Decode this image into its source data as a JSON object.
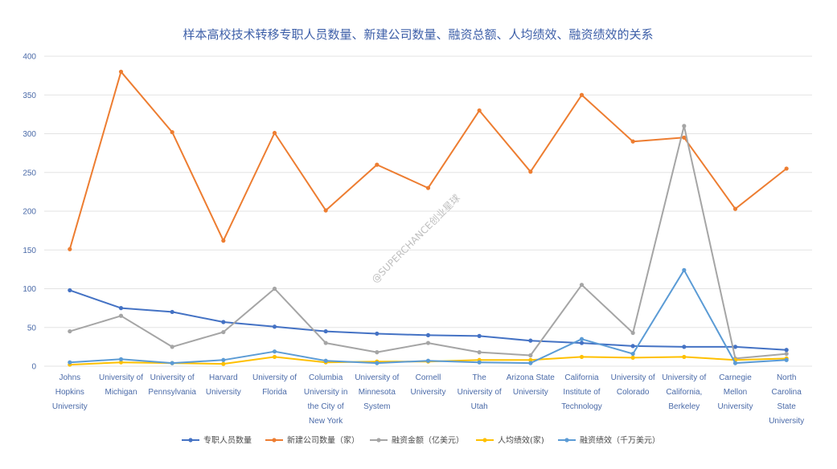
{
  "chart_data": {
    "type": "line",
    "title": "样本高校技术转移专职人员数量、新建公司数量、融资总额、人均绩效、融资绩效的关系",
    "watermark": "@SUPERCHANCE创业星球",
    "ylim": [
      0,
      400
    ],
    "yticks": [
      "0",
      "50",
      "100",
      "150",
      "200",
      "250",
      "300",
      "350",
      "400"
    ],
    "grid": true,
    "legend_position": "bottom",
    "categories": [
      [
        "Johns",
        "Hopkins",
        "University"
      ],
      [
        "University of",
        "Michigan"
      ],
      [
        "University of",
        "Pennsylvania"
      ],
      [
        "Harvard",
        "University"
      ],
      [
        "University of",
        "Florida"
      ],
      [
        "Columbia",
        "University in",
        "the City of",
        "New York"
      ],
      [
        "University of",
        "Minnesota",
        "System"
      ],
      [
        "Cornell",
        "University"
      ],
      [
        "The",
        "University of",
        "Utah"
      ],
      [
        "Arizona State",
        "University"
      ],
      [
        "California",
        "Institute of",
        "Technology"
      ],
      [
        "University of",
        "Colorado"
      ],
      [
        "University of",
        "California,",
        "Berkeley"
      ],
      [
        "Carnegie",
        "Mellon",
        "University"
      ],
      [
        "North",
        "Carolina",
        "State",
        "University"
      ]
    ],
    "series": [
      {
        "name": "专职人员数量",
        "color": "#4472c4",
        "values": [
          98,
          75,
          70,
          57,
          51,
          45,
          42,
          40,
          39,
          33,
          30,
          26,
          25,
          25,
          21
        ]
      },
      {
        "name": "新建公司数量（家）",
        "color": "#ed7d31",
        "values": [
          151,
          380,
          302,
          162,
          301,
          201,
          260,
          230,
          330,
          251,
          350,
          290,
          295,
          203,
          255
        ]
      },
      {
        "name": "融资金额（亿美元）",
        "color": "#a5a5a5",
        "values": [
          45,
          65,
          25,
          44,
          100,
          30,
          18,
          30,
          18,
          14,
          105,
          43,
          310,
          10,
          16
        ]
      },
      {
        "name": "人均绩效(家)",
        "color": "#ffc000",
        "values": [
          2,
          5,
          4,
          3,
          12,
          5,
          6,
          6,
          8,
          8,
          12,
          11,
          12,
          8,
          10
        ]
      },
      {
        "name": "融资绩效（千万美元）",
        "color": "#5b9bd5",
        "values": [
          5,
          9,
          4,
          8,
          19,
          7,
          4,
          7,
          5,
          4,
          35,
          16,
          124,
          4,
          8
        ]
      }
    ]
  }
}
